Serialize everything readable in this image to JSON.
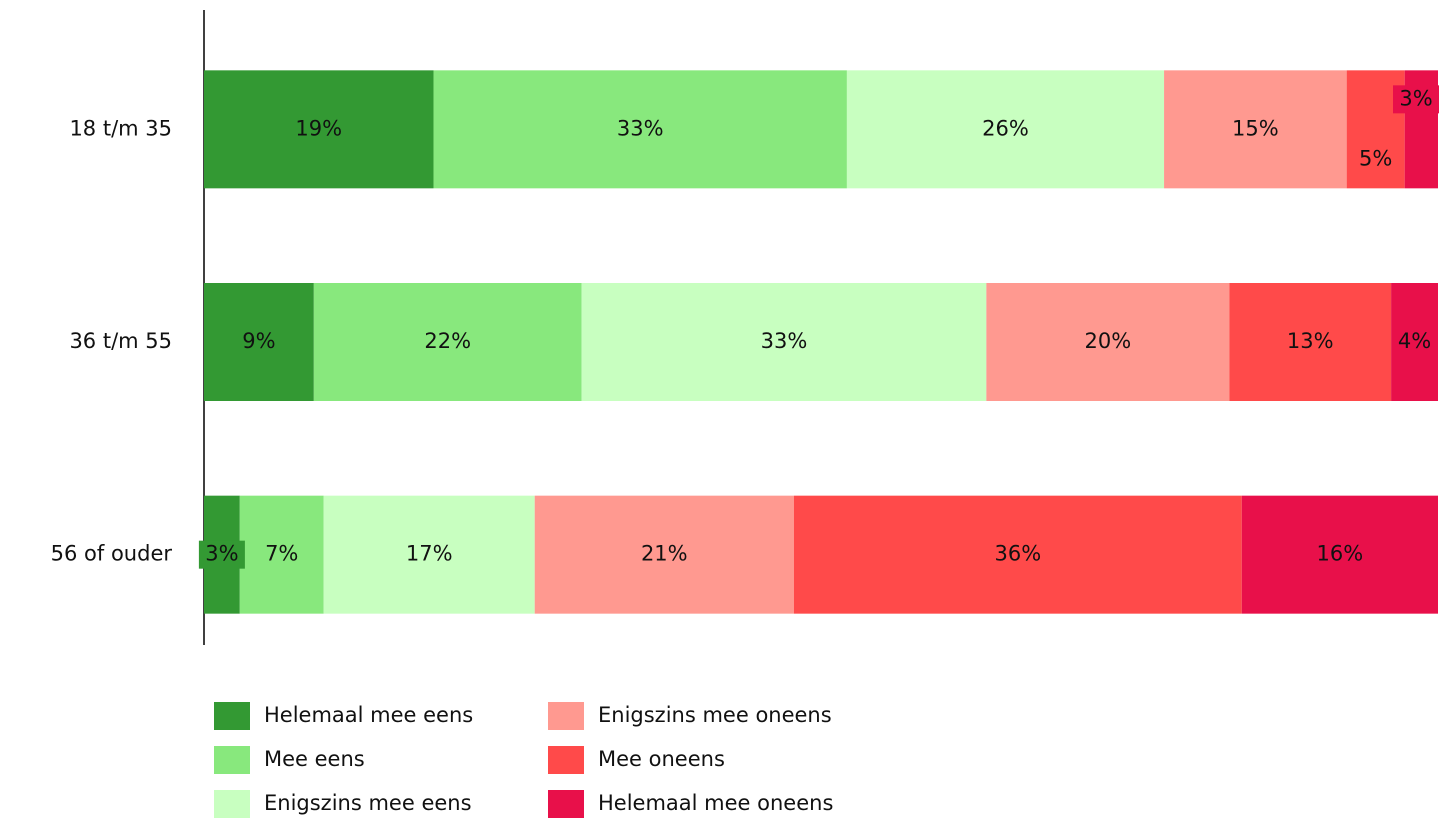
{
  "chart_data": {
    "type": "stacked_bar_horizontal",
    "categories": [
      "18 t/m 35",
      "36 t/m 55",
      "56 of ouder"
    ],
    "xlim": [
      0,
      100
    ],
    "series": [
      {
        "name": "Helemaal mee eens",
        "color": "#339933",
        "values": [
          18.6,
          8.9,
          2.9
        ],
        "value_labels": [
          "19%",
          "9%",
          "3%"
        ]
      },
      {
        "name": "Mee eens",
        "color": "#88e87d",
        "values": [
          33.5,
          21.7,
          6.8
        ],
        "value_labels": [
          "33%",
          "22%",
          "7%"
        ]
      },
      {
        "name": "Enigszins mee eens",
        "color": "#c8ffc0",
        "values": [
          25.7,
          32.8,
          17.1
        ],
        "value_labels": [
          "26%",
          "33%",
          "17%"
        ]
      },
      {
        "name": "Enigszins mee oneens",
        "color": "#ff9990",
        "values": [
          14.8,
          19.7,
          21.0
        ],
        "value_labels": [
          "15%",
          "20%",
          "21%"
        ]
      },
      {
        "name": "Mee oneens",
        "color": "#ff4a4a",
        "values": [
          4.7,
          13.1,
          36.3
        ],
        "value_labels": [
          "5%",
          "13%",
          "36%"
        ]
      },
      {
        "name": "Helemaal mee oneens",
        "color": "#e8104a",
        "values": [
          2.7,
          3.8,
          15.9
        ],
        "value_labels": [
          "3%",
          "4%",
          "16%"
        ]
      }
    ]
  }
}
